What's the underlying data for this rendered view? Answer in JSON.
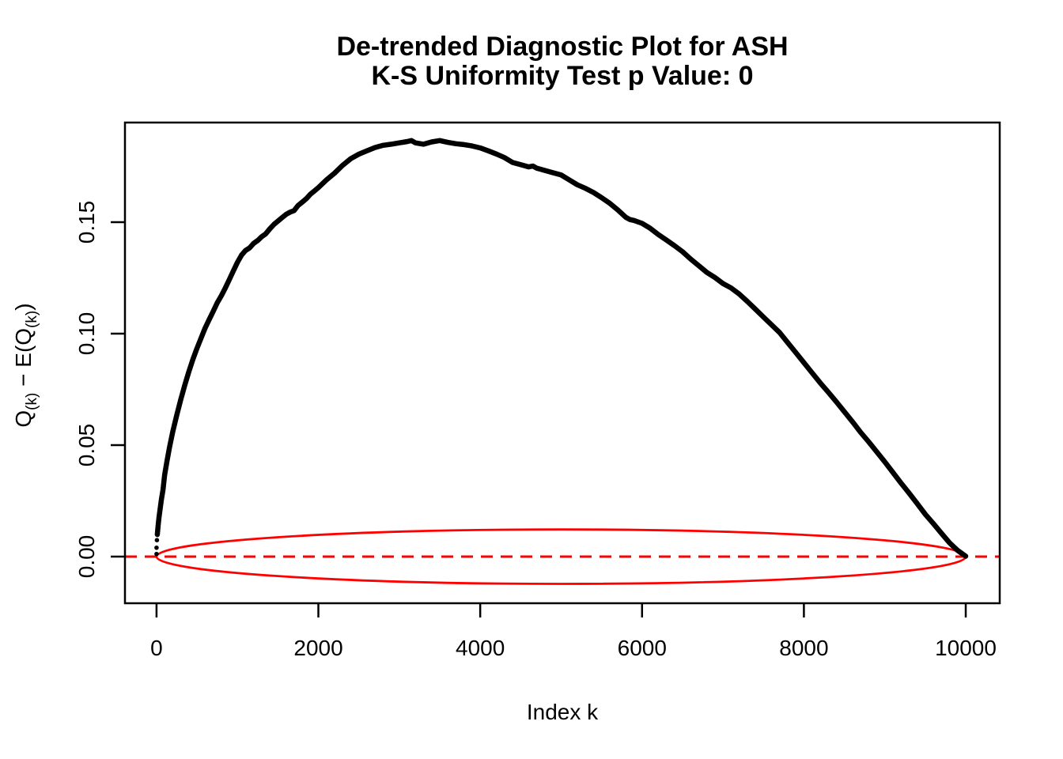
{
  "title": {
    "line1": "De-trended Diagnostic Plot for ASH",
    "line2": "K-S Uniformity Test p Value: 0"
  },
  "chart_data": {
    "type": "scatter",
    "title": "De-trended Diagnostic Plot for ASH",
    "subtitle": "K-S Uniformity Test p Value: 0",
    "ks_test_p_value": "0",
    "xlabel": "Index k",
    "ylabel_parts": {
      "p1": "Q",
      "s1": "(k)",
      "p2": " − E(Q",
      "s2": "(k)",
      "p3": ")"
    },
    "xlim": [
      -390,
      10420
    ],
    "ylim": [
      -0.0209,
      0.1947
    ],
    "grid": false,
    "legend": "none",
    "x_ticks": [
      {
        "v": 0,
        "label": "0"
      },
      {
        "v": 2000,
        "label": "2000"
      },
      {
        "v": 4000,
        "label": "4000"
      },
      {
        "v": 6000,
        "label": "6000"
      },
      {
        "v": 8000,
        "label": "8000"
      },
      {
        "v": 10000,
        "label": "10000"
      }
    ],
    "y_ticks": [
      {
        "v": 0.0,
        "label": "0.00"
      },
      {
        "v": 0.05,
        "label": "0.05"
      },
      {
        "v": 0.1,
        "label": "0.10"
      },
      {
        "v": 0.15,
        "label": "0.15"
      }
    ],
    "colors": {
      "curve": "#000000",
      "reference": "#FF0000",
      "axis": "#000000"
    },
    "zero_line": {
      "y": 0,
      "color": "#FF0000",
      "style": "dashed"
    },
    "confidence_ellipse": {
      "color": "#FF0000",
      "center_k": 5000,
      "center_v": 0,
      "semi_axis_k": 5000,
      "semi_axis_v": 0.0122
    },
    "series": [
      {
        "name": "detrended-order-statistics",
        "color": "#000000",
        "start_dots": [
          [
            0,
            0.0012
          ],
          [
            0,
            0.004
          ],
          [
            5,
            0.0074
          ]
        ],
        "points": [
          [
            10,
            0.0099
          ],
          [
            20,
            0.0138
          ],
          [
            30,
            0.0175
          ],
          [
            45,
            0.0215
          ],
          [
            60,
            0.0255
          ],
          [
            80,
            0.03
          ],
          [
            100,
            0.0365
          ],
          [
            130,
            0.043
          ],
          [
            160,
            0.049
          ],
          [
            200,
            0.056
          ],
          [
            250,
            0.0635
          ],
          [
            300,
            0.0705
          ],
          [
            350,
            0.077
          ],
          [
            400,
            0.083
          ],
          [
            450,
            0.0885
          ],
          [
            500,
            0.0935
          ],
          [
            550,
            0.098
          ],
          [
            600,
            0.1025
          ],
          [
            650,
            0.1063
          ],
          [
            700,
            0.11
          ],
          [
            750,
            0.1138
          ],
          [
            800,
            0.117
          ],
          [
            850,
            0.1205
          ],
          [
            900,
            0.1243
          ],
          [
            950,
            0.1282
          ],
          [
            1000,
            0.132
          ],
          [
            1050,
            0.1352
          ],
          [
            1100,
            0.1373
          ],
          [
            1150,
            0.1385
          ],
          [
            1200,
            0.1405
          ],
          [
            1250,
            0.1418
          ],
          [
            1300,
            0.1435
          ],
          [
            1350,
            0.1448
          ],
          [
            1400,
            0.147
          ],
          [
            1450,
            0.149
          ],
          [
            1500,
            0.1505
          ],
          [
            1550,
            0.152
          ],
          [
            1600,
            0.1535
          ],
          [
            1650,
            0.1545
          ],
          [
            1700,
            0.1552
          ],
          [
            1750,
            0.1575
          ],
          [
            1800,
            0.159
          ],
          [
            1850,
            0.1605
          ],
          [
            1900,
            0.1625
          ],
          [
            1950,
            0.164
          ],
          [
            2000,
            0.1655
          ],
          [
            2100,
            0.169
          ],
          [
            2200,
            0.172
          ],
          [
            2300,
            0.1755
          ],
          [
            2400,
            0.1785
          ],
          [
            2500,
            0.1805
          ],
          [
            2600,
            0.182
          ],
          [
            2700,
            0.1835
          ],
          [
            2800,
            0.1845
          ],
          [
            2900,
            0.185
          ],
          [
            3000,
            0.1856
          ],
          [
            3100,
            0.1862
          ],
          [
            3150,
            0.1866
          ],
          [
            3200,
            0.1856
          ],
          [
            3300,
            0.185
          ],
          [
            3400,
            0.186
          ],
          [
            3500,
            0.1866
          ],
          [
            3600,
            0.1858
          ],
          [
            3700,
            0.1852
          ],
          [
            3800,
            0.1848
          ],
          [
            3900,
            0.1842
          ],
          [
            4000,
            0.1833
          ],
          [
            4100,
            0.182
          ],
          [
            4200,
            0.1806
          ],
          [
            4300,
            0.179
          ],
          [
            4400,
            0.1768
          ],
          [
            4500,
            0.1758
          ],
          [
            4600,
            0.1748
          ],
          [
            4650,
            0.1752
          ],
          [
            4700,
            0.1742
          ],
          [
            4800,
            0.1732
          ],
          [
            4900,
            0.1722
          ],
          [
            5000,
            0.1712
          ],
          [
            5100,
            0.169
          ],
          [
            5200,
            0.1668
          ],
          [
            5300,
            0.1652
          ],
          [
            5400,
            0.1633
          ],
          [
            5500,
            0.161
          ],
          [
            5600,
            0.1585
          ],
          [
            5700,
            0.1555
          ],
          [
            5800,
            0.1522
          ],
          [
            5850,
            0.1512
          ],
          [
            5900,
            0.1508
          ],
          [
            6000,
            0.1495
          ],
          [
            6100,
            0.1473
          ],
          [
            6200,
            0.1445
          ],
          [
            6300,
            0.142
          ],
          [
            6400,
            0.1395
          ],
          [
            6500,
            0.1368
          ],
          [
            6600,
            0.1335
          ],
          [
            6700,
            0.1305
          ],
          [
            6800,
            0.1275
          ],
          [
            6900,
            0.1252
          ],
          [
            7000,
            0.1225
          ],
          [
            7100,
            0.1205
          ],
          [
            7200,
            0.1178
          ],
          [
            7300,
            0.1145
          ],
          [
            7400,
            0.111
          ],
          [
            7500,
            0.1075
          ],
          [
            7600,
            0.104
          ],
          [
            7700,
            0.1005
          ],
          [
            7800,
            0.096
          ],
          [
            7900,
            0.0915
          ],
          [
            8000,
            0.087
          ],
          [
            8100,
            0.0825
          ],
          [
            8200,
            0.078
          ],
          [
            8300,
            0.0738
          ],
          [
            8400,
            0.0695
          ],
          [
            8500,
            0.065
          ],
          [
            8600,
            0.0605
          ],
          [
            8700,
            0.0558
          ],
          [
            8800,
            0.0515
          ],
          [
            8900,
            0.047
          ],
          [
            9000,
            0.0425
          ],
          [
            9100,
            0.0378
          ],
          [
            9200,
            0.033
          ],
          [
            9300,
            0.0285
          ],
          [
            9400,
            0.0238
          ],
          [
            9500,
            0.019
          ],
          [
            9600,
            0.0148
          ],
          [
            9700,
            0.0105
          ],
          [
            9800,
            0.0062
          ],
          [
            9900,
            0.0028
          ],
          [
            10000,
            0.0002
          ]
        ]
      }
    ]
  }
}
